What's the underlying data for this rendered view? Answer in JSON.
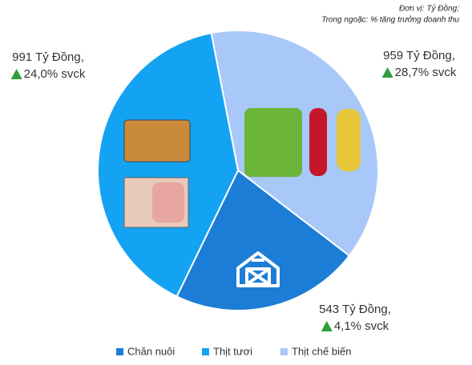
{
  "chart_data": {
    "type": "pie",
    "notes": [
      "Đơn vị: Tỷ Đồng;",
      "Trong ngoặc: % tăng trưởng doanh thu"
    ],
    "categories": [
      "Chăn nuôi",
      "Thịt tươi",
      "Thịt chế biến"
    ],
    "values": [
      543,
      991,
      959
    ],
    "value_labels": [
      "543 Tỷ Đồng,",
      "991 Tỷ Đồng,",
      "959 Tỷ Đồng,"
    ],
    "growth_labels": [
      "4,1% svck",
      "24,0% svck",
      "28,7% svck"
    ],
    "colors": [
      "#1c7dd6",
      "#14a2f2",
      "#a8c8fa"
    ],
    "growth_color": "#2e9e3a",
    "legend": "bottom"
  }
}
